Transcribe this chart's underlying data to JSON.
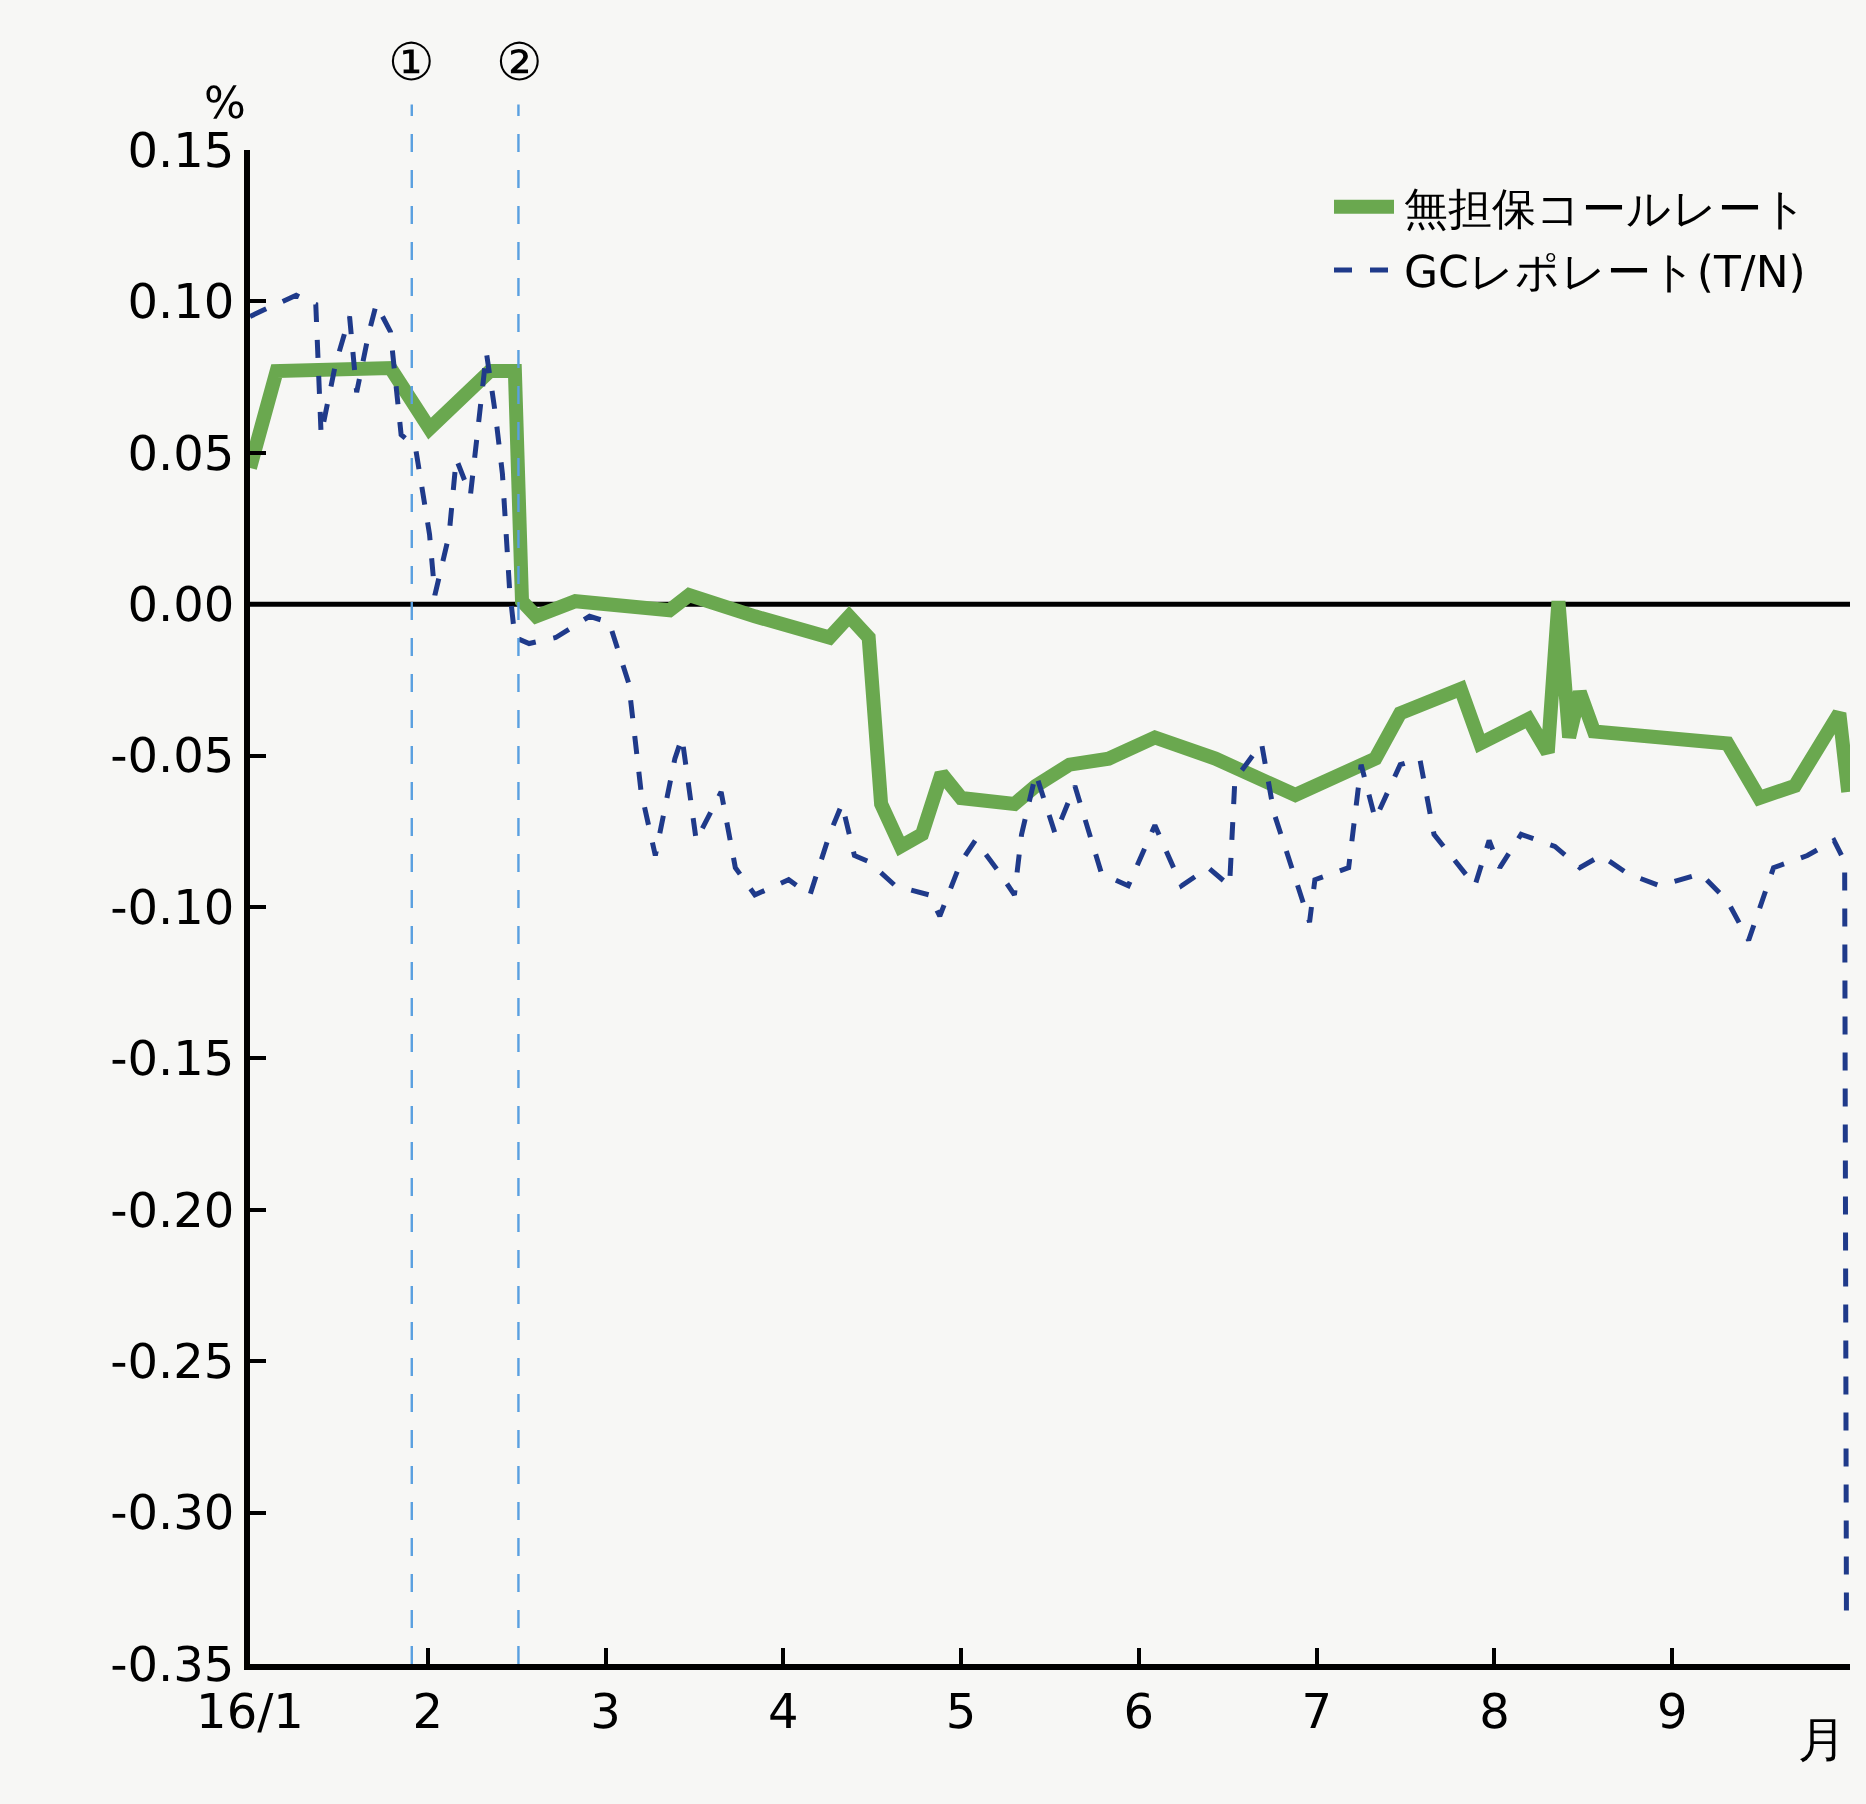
{
  "chart_data": {
    "type": "line",
    "xlabel": "月",
    "ylabel": "%",
    "xlim": [
      1,
      10
    ],
    "xticks": [
      {
        "value": 1,
        "label": "16/1"
      },
      2,
      3,
      4,
      5,
      6,
      7,
      8,
      9
    ],
    "ylim": [
      -0.35,
      0.15
    ],
    "yticks": [
      {
        "value": 0.15,
        "label": "0.15"
      },
      {
        "value": 0.1,
        "label": "0.10"
      },
      {
        "value": 0.05,
        "label": "0.05"
      },
      {
        "value": 0,
        "label": "0.00"
      },
      {
        "value": -0.05,
        "label": "-0.05"
      },
      {
        "value": -0.1,
        "label": "-0.10"
      },
      {
        "value": -0.15,
        "label": "-0.15"
      },
      {
        "value": -0.2,
        "label": "-0.20"
      },
      {
        "value": -0.25,
        "label": "-0.25"
      },
      {
        "value": -0.3,
        "label": "-0.30"
      },
      {
        "value": -0.35,
        "label": "-0.35"
      }
    ],
    "grid": false,
    "legend": "top right",
    "ref_lines": [
      {
        "axis": "x",
        "value": 1.91,
        "label": "①",
        "color": "#5aa0e0",
        "line_style": "dashed"
      },
      {
        "axis": "x",
        "value": 2.51,
        "label": "②",
        "color": "#5aa0e0",
        "line_style": "dashed"
      },
      {
        "axis": "y",
        "value": 0,
        "color": "#000000",
        "line_style": "solid"
      }
    ],
    "series": [
      {
        "name": "無担保コールレート",
        "color": "#6aa84f",
        "line_style": "solid",
        "x": [
          1.0,
          1.15,
          1.79,
          2.01,
          2.35,
          2.49,
          2.53,
          2.61,
          2.83,
          3.36,
          3.47,
          3.84,
          4.26,
          4.37,
          4.48,
          4.55,
          4.66,
          4.78,
          4.89,
          5.0,
          5.3,
          5.42,
          5.61,
          5.83,
          6.09,
          6.43,
          6.88,
          7.33,
          7.47,
          7.81,
          7.92,
          8.19,
          8.3,
          8.36,
          8.42,
          8.48,
          8.56,
          9.31,
          9.49,
          9.69,
          9.94,
          9.99
        ],
        "values": [
          0.045,
          0.077,
          0.078,
          0.058,
          0.077,
          0.077,
          0.001,
          -0.004,
          0.001,
          -0.002,
          0.003,
          -0.004,
          -0.011,
          -0.004,
          -0.011,
          -0.066,
          -0.08,
          -0.076,
          -0.056,
          -0.064,
          -0.066,
          -0.06,
          -0.053,
          -0.051,
          -0.044,
          -0.051,
          -0.063,
          -0.051,
          -0.036,
          -0.028,
          -0.046,
          -0.038,
          -0.049,
          0.001,
          -0.044,
          -0.029,
          -0.042,
          -0.046,
          -0.064,
          -0.06,
          -0.036,
          -0.062
        ]
      },
      {
        "name": "GCレポレート(T/N)",
        "color": "#1f3a8a",
        "line_style": "dashed",
        "x": [
          1.0,
          1.07,
          1.26,
          1.37,
          1.4,
          1.48,
          1.56,
          1.6,
          1.67,
          1.71,
          1.79,
          1.85,
          1.93,
          2.01,
          2.04,
          2.12,
          2.16,
          2.24,
          2.33,
          2.38,
          2.42,
          2.46,
          2.49,
          2.57,
          2.72,
          2.91,
          3.02,
          3.13,
          3.2,
          3.28,
          3.39,
          3.43,
          3.51,
          3.65,
          3.73,
          3.84,
          4.03,
          4.15,
          4.26,
          4.33,
          4.4,
          4.48,
          4.63,
          4.82,
          4.88,
          5.0,
          5.08,
          5.22,
          5.3,
          5.34,
          5.42,
          5.53,
          5.64,
          5.79,
          5.94,
          6.09,
          6.24,
          6.39,
          6.51,
          6.54,
          6.69,
          6.76,
          6.96,
          6.99,
          7.18,
          7.25,
          7.33,
          7.47,
          7.58,
          7.66,
          7.89,
          7.97,
          8.03,
          8.15,
          8.34,
          8.48,
          8.6,
          8.75,
          8.93,
          9.16,
          9.31,
          9.43,
          9.57,
          9.76,
          9.91,
          9.97,
          9.98
        ],
        "values": [
          0.095,
          0.097,
          0.102,
          0.099,
          0.056,
          0.079,
          0.095,
          0.07,
          0.09,
          0.099,
          0.09,
          0.056,
          0.052,
          0.023,
          0.003,
          0.023,
          0.048,
          0.036,
          0.083,
          0.063,
          0.043,
          0.005,
          -0.011,
          -0.013,
          -0.011,
          -0.004,
          -0.006,
          -0.026,
          -0.062,
          -0.083,
          -0.051,
          -0.044,
          -0.078,
          -0.062,
          -0.087,
          -0.096,
          -0.091,
          -0.096,
          -0.076,
          -0.066,
          -0.083,
          -0.085,
          -0.093,
          -0.096,
          -0.103,
          -0.085,
          -0.078,
          -0.089,
          -0.096,
          -0.076,
          -0.056,
          -0.076,
          -0.06,
          -0.089,
          -0.093,
          -0.073,
          -0.093,
          -0.087,
          -0.093,
          -0.058,
          -0.046,
          -0.069,
          -0.105,
          -0.091,
          -0.087,
          -0.053,
          -0.071,
          -0.053,
          -0.051,
          -0.076,
          -0.093,
          -0.078,
          -0.087,
          -0.076,
          -0.08,
          -0.087,
          -0.083,
          -0.089,
          -0.093,
          -0.089,
          -0.098,
          -0.111,
          -0.087,
          -0.083,
          -0.078,
          -0.085,
          -0.333
        ]
      }
    ]
  }
}
